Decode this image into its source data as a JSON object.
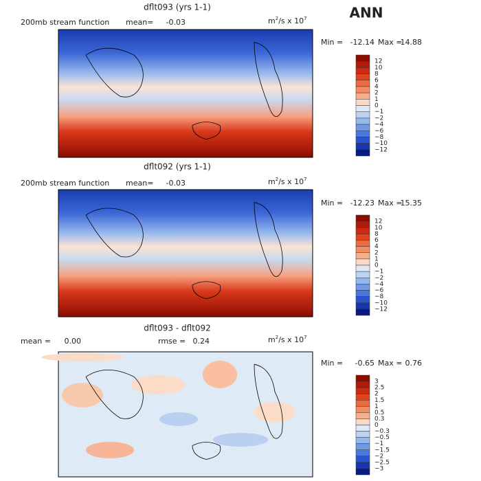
{
  "header": {
    "season": "ANN"
  },
  "panels": [
    {
      "title": "dflt093 (yrs 1-1)",
      "left_text": "200mb stream function",
      "mean_label": "mean=",
      "mean": "-0.03",
      "units": {
        "base": "m",
        "sup1": "2",
        "mid": "/s x 10",
        "sup2": "7"
      },
      "min_label": "Min =",
      "min": "-12.14",
      "max_label": "Max =",
      "max": "14.88",
      "colorbar": [
        "12",
        "10",
        "8",
        "6",
        "4",
        "2",
        "1",
        "0",
        "−1",
        "−2",
        "−4",
        "−6",
        "−8",
        "−10",
        "−12"
      ]
    },
    {
      "title": "dflt092 (yrs 1-1)",
      "left_text": "200mb stream function",
      "mean_label": "mean=",
      "mean": "-0.03",
      "units": {
        "base": "m",
        "sup1": "2",
        "mid": "/s x 10",
        "sup2": "7"
      },
      "min_label": "Min =",
      "min": "-12.23",
      "max_label": "Max =",
      "max": "15.35",
      "colorbar": [
        "12",
        "10",
        "8",
        "6",
        "4",
        "2",
        "1",
        "0",
        "−1",
        "−2",
        "−4",
        "−6",
        "−8",
        "−10",
        "−12"
      ]
    },
    {
      "title": "dflt093 - dflt092",
      "left_text": "mean =",
      "mean": "0.00",
      "rmse_label": "rmse =",
      "rmse": "0.24",
      "units": {
        "base": "m",
        "sup1": "2",
        "mid": "/s x 10",
        "sup2": "7"
      },
      "min_label": "Min =",
      "min": "-0.65",
      "max_label": "Max =",
      "max": "0.76",
      "colorbar": [
        "3",
        "2.5",
        "2",
        "1.5",
        "1",
        "0.5",
        "0.3",
        "0",
        "−0.3",
        "−0.5",
        "−1",
        "−1.5",
        "−2",
        "−2.5",
        "−3"
      ]
    }
  ],
  "colors": [
    "#8c0c00",
    "#b01a0a",
    "#cc2a12",
    "#e0441c",
    "#ec6a40",
    "#f58c64",
    "#f9ae8c",
    "#fcd9c4",
    "#dde9f7",
    "#bcd3f0",
    "#95b8ec",
    "#6f98e6",
    "#4a78dc",
    "#2a55cc",
    "#1736aa",
    "#0a1a80"
  ]
}
